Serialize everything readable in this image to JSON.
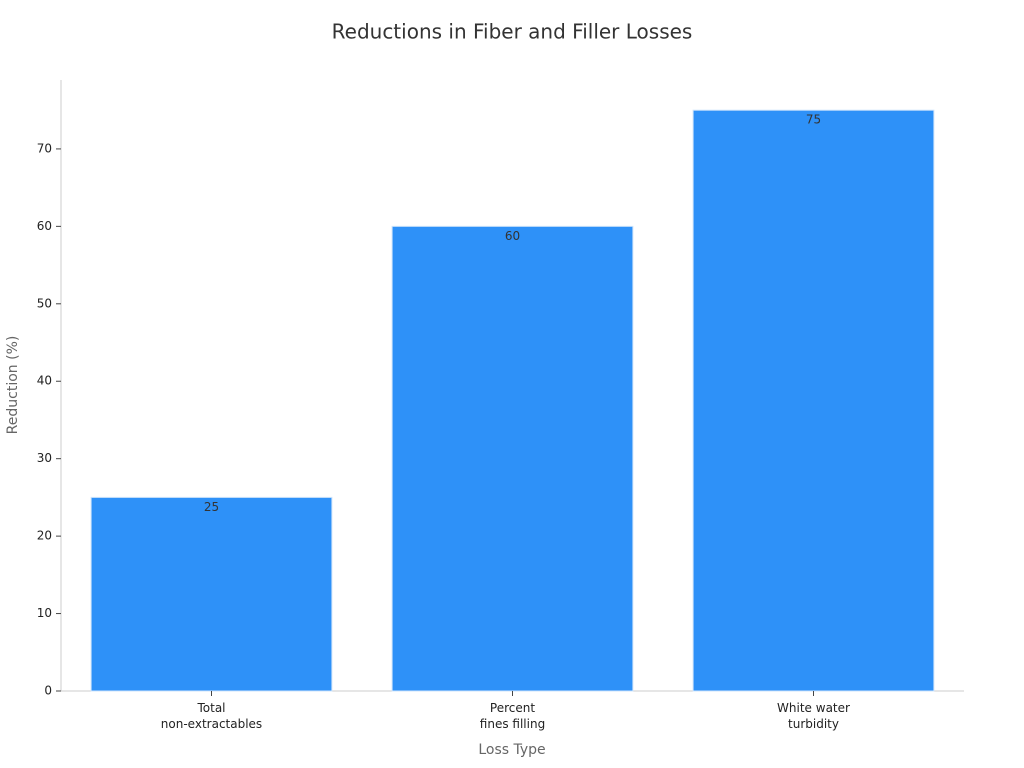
{
  "chart_data": {
    "type": "bar",
    "title": "Reductions in Fiber and Filler Losses",
    "x_label": "Loss Type",
    "y_label": "Reduction (%)",
    "categories": [
      [
        "Total",
        "non-extractables"
      ],
      [
        "Percent",
        "fines filling"
      ],
      [
        "White water",
        "turbidity"
      ]
    ],
    "values": [
      25,
      60,
      75
    ],
    "color": "#2e91f8",
    "ylim": [
      0,
      78.9
    ],
    "yticks": [
      0,
      10,
      20,
      30,
      40,
      50,
      60,
      70
    ],
    "grid": false
  }
}
